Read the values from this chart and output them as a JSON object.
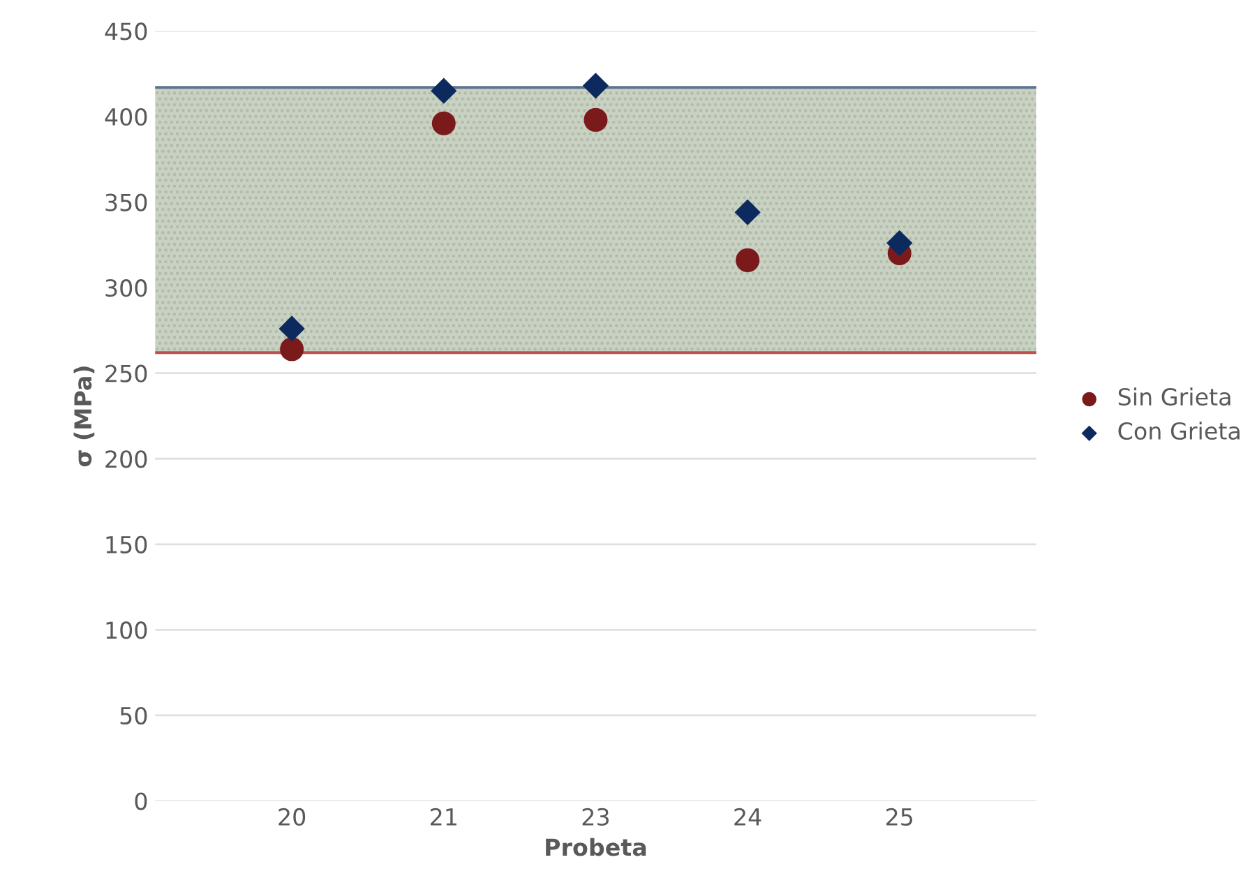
{
  "chart_data": {
    "type": "scatter",
    "xlabel": "Probeta",
    "ylabel": "σ (MPa)",
    "categories": [
      "20",
      "21",
      "23",
      "24",
      "25"
    ],
    "series": [
      {
        "name": "Sin Grieta",
        "color": "#7b1a1a",
        "marker": "circle",
        "values": [
          264,
          396,
          398,
          316,
          320
        ]
      },
      {
        "name": "Con Grieta",
        "color": "#0d2a5e",
        "marker": "diamond",
        "values": [
          276,
          415,
          418,
          344,
          326
        ]
      }
    ],
    "ylim": [
      0,
      450
    ],
    "yticks": [
      0,
      50,
      100,
      150,
      200,
      250,
      300,
      350,
      400,
      450
    ],
    "grid": "y",
    "legend": "right",
    "bands": [
      {
        "axis": "y",
        "from": 262,
        "to": 417,
        "color": "#c9d1c3"
      }
    ],
    "ref_lines": [
      {
        "axis": "y",
        "value": 417,
        "color": "#5b7391"
      },
      {
        "axis": "y",
        "value": 262,
        "color": "#c0504d"
      }
    ]
  }
}
